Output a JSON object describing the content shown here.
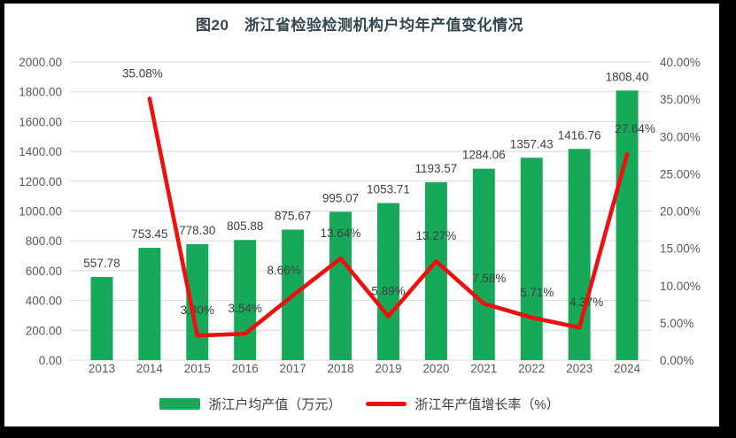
{
  "title": "图20　浙江省检验检测机构户均年产值变化情况",
  "colors": {
    "bar": "#17A95A",
    "line": "#EE0F0F",
    "title_text": "#33464F",
    "axis_text": "#595959",
    "data_label_text": "#3F3F3F",
    "gridline": "#D9D9D9",
    "frame": "#000000",
    "background": "#FFFFFF"
  },
  "legend": {
    "bar_label": "浙江户均产值（万元）",
    "line_label": "浙江年产值增长率（%）"
  },
  "chart_data": {
    "type": "bar",
    "subtype": "bar+line combo, dual axis",
    "title": "图20　浙江省检验检测机构户均年产值变化情况",
    "categories": [
      "2013",
      "2014",
      "2015",
      "2016",
      "2017",
      "2018",
      "2019",
      "2020",
      "2021",
      "2022",
      "2023",
      "2024"
    ],
    "series": [
      {
        "name": "浙江户均产值（万元）",
        "type": "bar",
        "axis": "left",
        "values": [
          557.78,
          753.45,
          778.3,
          805.88,
          875.67,
          995.07,
          1053.71,
          1193.57,
          1284.06,
          1357.43,
          1416.76,
          1808.4
        ],
        "labels": [
          "557.78",
          "753.45",
          "778.30",
          "805.88",
          "875.67",
          "995.07",
          "1053.71",
          "1193.57",
          "1284.06",
          "1357.43",
          "1416.76",
          "1808.40"
        ]
      },
      {
        "name": "浙江年产值增长率（%）",
        "type": "line",
        "axis": "right",
        "values": [
          null,
          35.08,
          3.3,
          3.54,
          8.66,
          13.64,
          5.89,
          13.27,
          7.58,
          5.71,
          4.37,
          27.64
        ],
        "labels": [
          null,
          "35.08%",
          "3.30%",
          "3.54%",
          "8.66%",
          "13.64%",
          "5.89%",
          "13.27%",
          "7.58%",
          "5.71%",
          "4.37%",
          "27.64%"
        ]
      }
    ],
    "left_axis": {
      "min": 0,
      "max": 2000,
      "step": 200,
      "tick_labels": [
        "0.00",
        "200.00",
        "400.00",
        "600.00",
        "800.00",
        "1000.00",
        "1200.00",
        "1400.00",
        "1600.00",
        "1800.00",
        "2000.00"
      ]
    },
    "right_axis": {
      "min": 0,
      "max": 40,
      "step": 5,
      "tick_labels": [
        "0.00%",
        "5.00%",
        "10.00%",
        "15.00%",
        "20.00%",
        "25.00%",
        "30.00%",
        "35.00%",
        "40.00%"
      ]
    },
    "grid": true,
    "legend_position": "bottom"
  }
}
